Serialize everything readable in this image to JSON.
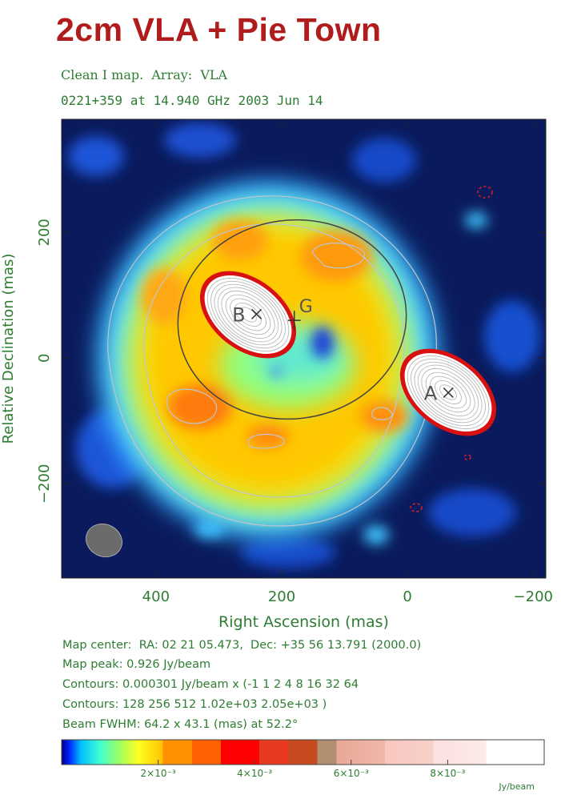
{
  "page_title": "2cm VLA + Pie Town",
  "header": {
    "line1": "Clean I map.  Array:  VLA",
    "line2": "0221+359 at 14.940 GHz 2003 Jun 14"
  },
  "info": {
    "map_center": "Map center:  RA: 02 21 05.473,  Dec: +35 56 13.791 (2000.0)",
    "map_peak": "Map peak: 0.926 Jy/beam",
    "contours1": "Contours: 0.000301 Jy/beam x (-1 1 2 4 8 16 32 64",
    "contours2": "Contours: 128 256 512 1.02e+03 2.05e+03 )",
    "beam": "Beam FWHM: 64.2 x 43.1 (mas) at 52.2°"
  },
  "colorbar": {
    "unit": "Jy/beam",
    "ticks": [
      {
        "value": 0.002,
        "label": "2×10⁻³"
      },
      {
        "value": 0.004,
        "label": "4×10⁻³"
      },
      {
        "value": 0.006,
        "label": "6×10⁻³"
      },
      {
        "value": 0.008,
        "label": "8×10⁻³"
      }
    ],
    "range": [
      0,
      0.01
    ]
  },
  "chart_data": {
    "type": "heatmap",
    "xlabel": "Right Ascension   (mas)",
    "ylabel": "Relative Declination   (mas)",
    "xlim": [
      550,
      -220
    ],
    "ylim": [
      -350,
      380
    ],
    "x_ticks": [
      400,
      200,
      0,
      -200
    ],
    "y_ticks": [
      200,
      0,
      -200
    ],
    "x_tick_labels": [
      "400",
      "200",
      "0",
      "−200"
    ],
    "y_tick_labels": [
      "200",
      "0",
      "−200"
    ],
    "components": [
      {
        "label": "A",
        "x": -65,
        "y": -55
      },
      {
        "label": "B",
        "x": 240,
        "y": 70
      },
      {
        "label": "G",
        "x": 180,
        "y": 60
      }
    ],
    "beam": {
      "major_mas": 64.2,
      "minor_mas": 43.1,
      "pa_deg": 52.2
    },
    "map_peak_jy_per_beam": 0.926,
    "colors": {
      "background": "#0a1a5c",
      "ring": "#f0d000",
      "ring_peak": "#ff8a00",
      "halo": "#4fd7ff",
      "core_edge": "#e01818",
      "contour": "#bcc6d0",
      "ellipse": "#444444",
      "axis_text": "#2e7d32"
    }
  }
}
